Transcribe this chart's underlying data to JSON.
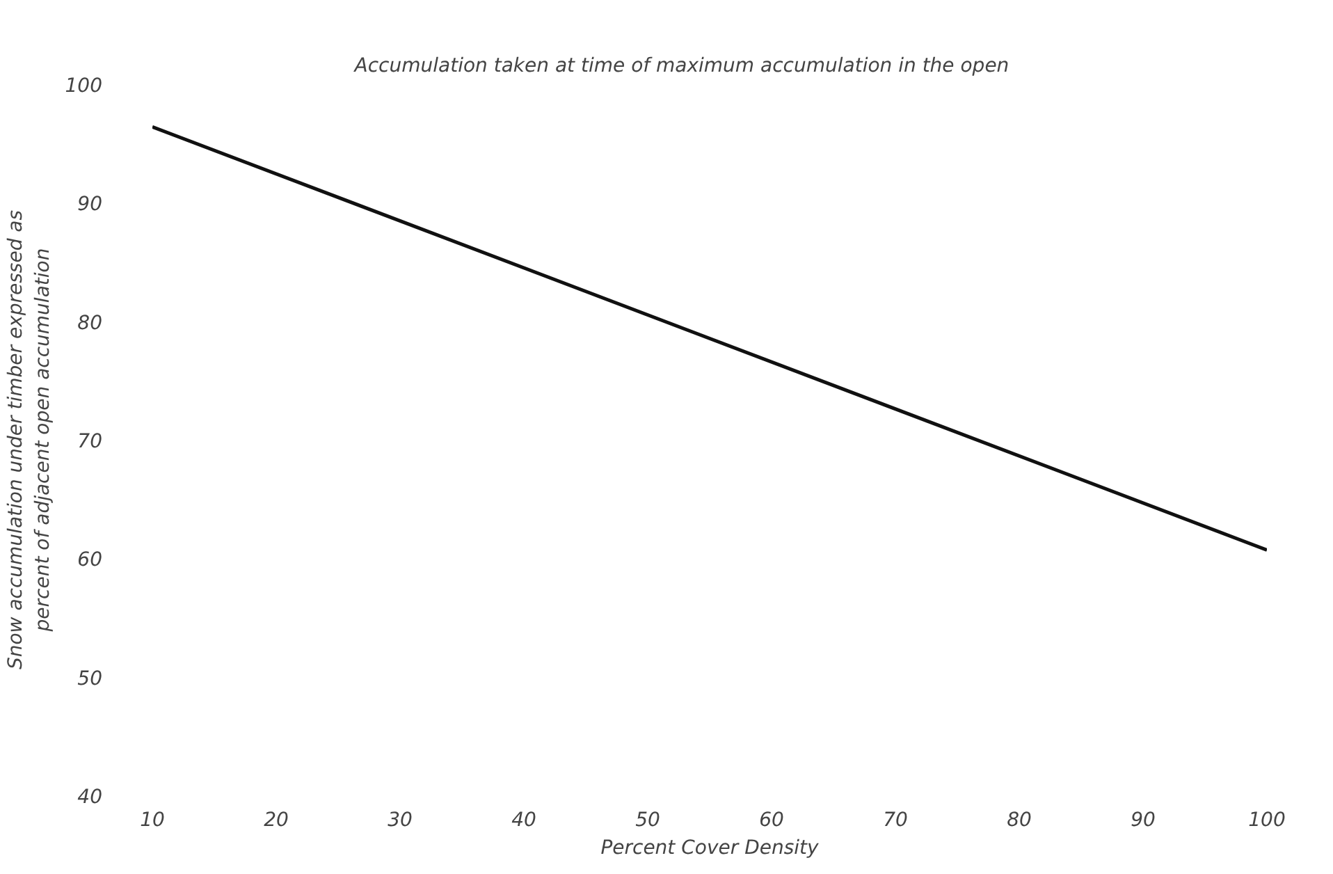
{
  "chart_data": {
    "type": "line",
    "title": "Accumulation  taken  at  time  of  maximum  accumulation  in  the  open",
    "xlabel": "Percent Cover Density",
    "ylabel": "Snow accumulation under timber expressed as\npercent of adjacent open accumulation",
    "x": [
      10,
      100
    ],
    "series": [
      {
        "color": "#111111",
        "values": [
          96.4,
          60.7
        ]
      }
    ],
    "xlim": [
      10,
      100
    ],
    "ylim": [
      40,
      100
    ],
    "xticks": [
      10,
      20,
      30,
      40,
      50,
      60,
      70,
      80,
      90,
      100
    ],
    "yticks": [
      40,
      50,
      60,
      70,
      80,
      90,
      100
    ],
    "grid": false,
    "marker": "none",
    "line_style": "solid"
  }
}
